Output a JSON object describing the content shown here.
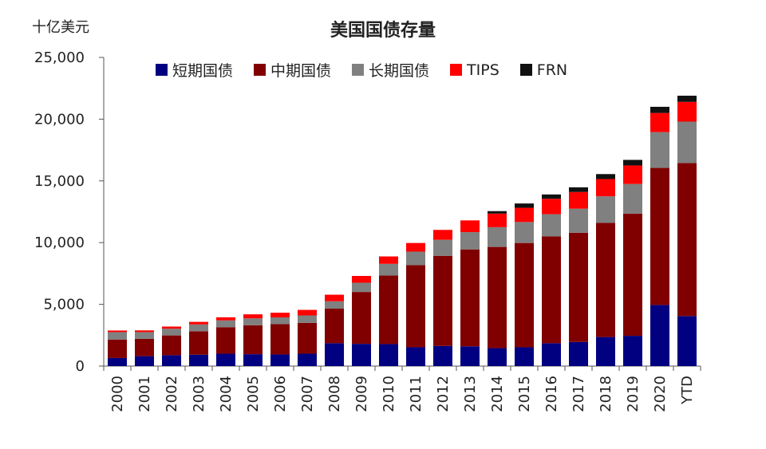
{
  "chart_data": {
    "type": "bar",
    "stacked": true,
    "title": "美国国债存量",
    "unit_label": "十亿美元",
    "ylim": [
      0,
      25000
    ],
    "yticks": [
      "0",
      "5,000",
      "10,000",
      "15,000",
      "20,000",
      "25,000"
    ],
    "categories": [
      "2000",
      "2001",
      "2002",
      "2003",
      "2004",
      "2005",
      "2006",
      "2007",
      "2008",
      "2009",
      "2010",
      "2011",
      "2012",
      "2013",
      "2014",
      "2015",
      "2016",
      "2017",
      "2018",
      "2019",
      "2020",
      "YTD"
    ],
    "series": [
      {
        "name": "短期国债",
        "color": "#000080",
        "values": [
          650,
          800,
          880,
          920,
          1000,
          960,
          940,
          1000,
          1850,
          1800,
          1780,
          1520,
          1630,
          1600,
          1450,
          1520,
          1850,
          1950,
          2350,
          2450,
          4950,
          4050
        ]
      },
      {
        "name": "中期国债",
        "color": "#800000",
        "values": [
          1500,
          1400,
          1600,
          1900,
          2150,
          2350,
          2450,
          2500,
          2800,
          4200,
          5550,
          6650,
          7300,
          7850,
          8200,
          8450,
          8650,
          8850,
          9250,
          9900,
          11100,
          12400
        ]
      },
      {
        "name": "长期国债",
        "color": "#808080",
        "values": [
          600,
          550,
          550,
          550,
          550,
          550,
          550,
          600,
          600,
          750,
          950,
          1100,
          1300,
          1400,
          1600,
          1700,
          1800,
          1950,
          2150,
          2400,
          2900,
          3350
        ]
      },
      {
        "name": "TIPS",
        "color": "#ff0000",
        "values": [
          130,
          140,
          170,
          210,
          250,
          330,
          380,
          450,
          530,
          550,
          600,
          700,
          800,
          950,
          1100,
          1150,
          1250,
          1350,
          1400,
          1500,
          1550,
          1600
        ]
      },
      {
        "name": "FRN",
        "color": "#111111",
        "values": [
          0,
          0,
          0,
          0,
          0,
          0,
          0,
          0,
          0,
          0,
          0,
          0,
          0,
          0,
          200,
          350,
          350,
          380,
          400,
          450,
          500,
          500
        ]
      }
    ]
  }
}
